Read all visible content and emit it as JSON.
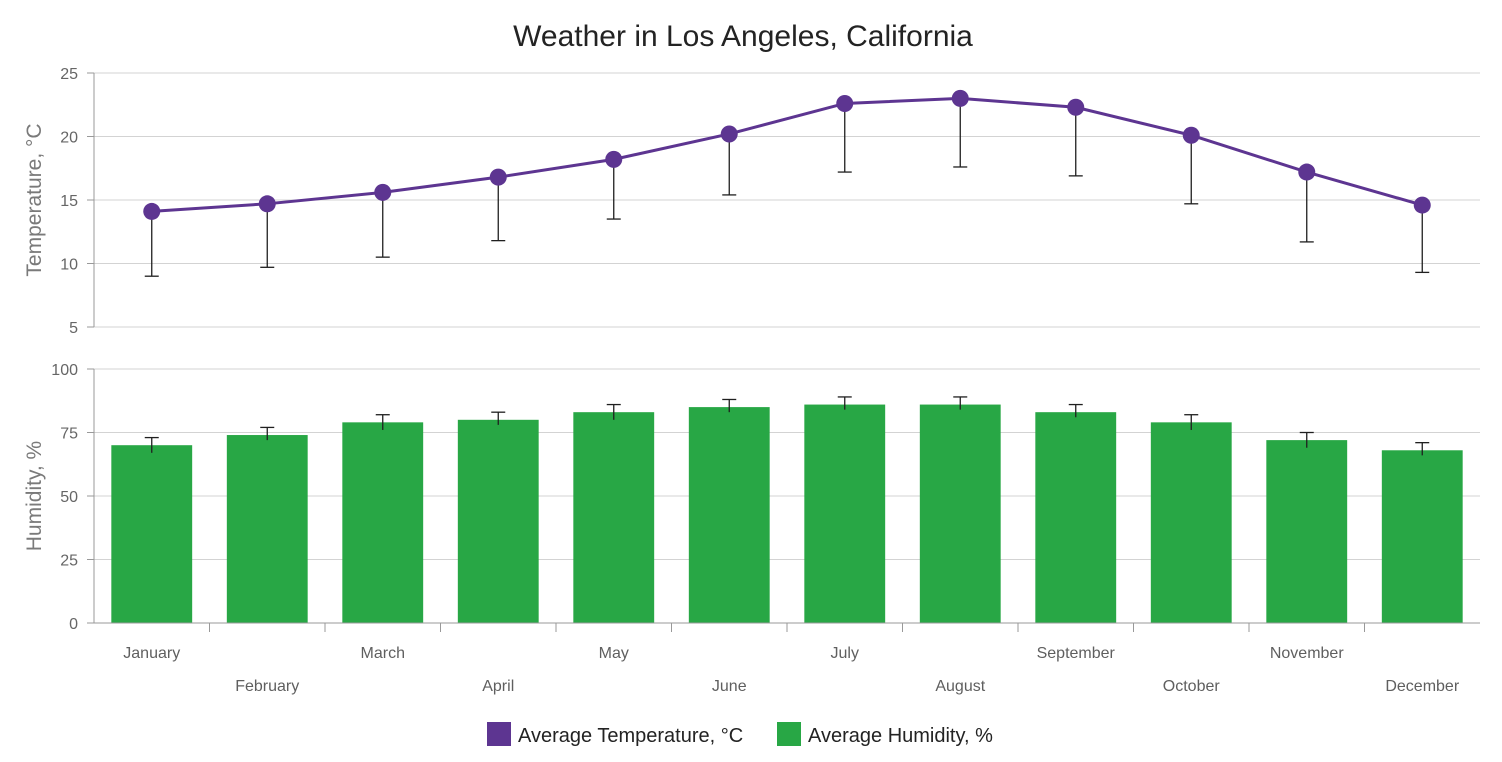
{
  "chart_data": {
    "type": "line",
    "title": "Weather in Los Angeles, California",
    "categories": [
      "January",
      "February",
      "March",
      "April",
      "May",
      "June",
      "July",
      "August",
      "September",
      "October",
      "November",
      "December"
    ],
    "panes": [
      {
        "ylabel": "Temperature, °C",
        "ylim": [
          5,
          25
        ],
        "yticks": [
          5,
          10,
          15,
          20,
          25
        ],
        "series": [
          {
            "name": "Average Temperature, °C",
            "type": "line",
            "color": "#5d3591",
            "values": [
              14.1,
              14.7,
              15.6,
              16.8,
              18.2,
              20.2,
              22.6,
              23.0,
              22.3,
              20.1,
              17.2,
              14.6
            ],
            "error_low": [
              9.0,
              9.7,
              10.5,
              11.8,
              13.5,
              15.4,
              17.2,
              17.6,
              16.9,
              14.7,
              11.7,
              9.3
            ],
            "error_high": [
              14.1,
              14.7,
              15.6,
              16.8,
              18.2,
              20.2,
              22.6,
              23.0,
              22.3,
              20.1,
              17.2,
              14.6
            ]
          }
        ]
      },
      {
        "ylabel": "Humidity, %",
        "ylim": [
          0,
          100
        ],
        "yticks": [
          0,
          25,
          50,
          75,
          100
        ],
        "series": [
          {
            "name": "Average Humidity, %",
            "type": "bar",
            "color": "#28a745",
            "values": [
              70,
              74,
              79,
              80,
              83,
              85,
              86,
              86,
              83,
              79,
              72,
              68
            ],
            "error_low": [
              67,
              72,
              76,
              78,
              80,
              83,
              84,
              84,
              81,
              76,
              69,
              66
            ],
            "error_high": [
              73,
              77,
              82,
              83,
              86,
              88,
              89,
              89,
              86,
              82,
              75,
              71
            ]
          }
        ]
      }
    ],
    "grid": true,
    "legend_position": "bottom"
  }
}
